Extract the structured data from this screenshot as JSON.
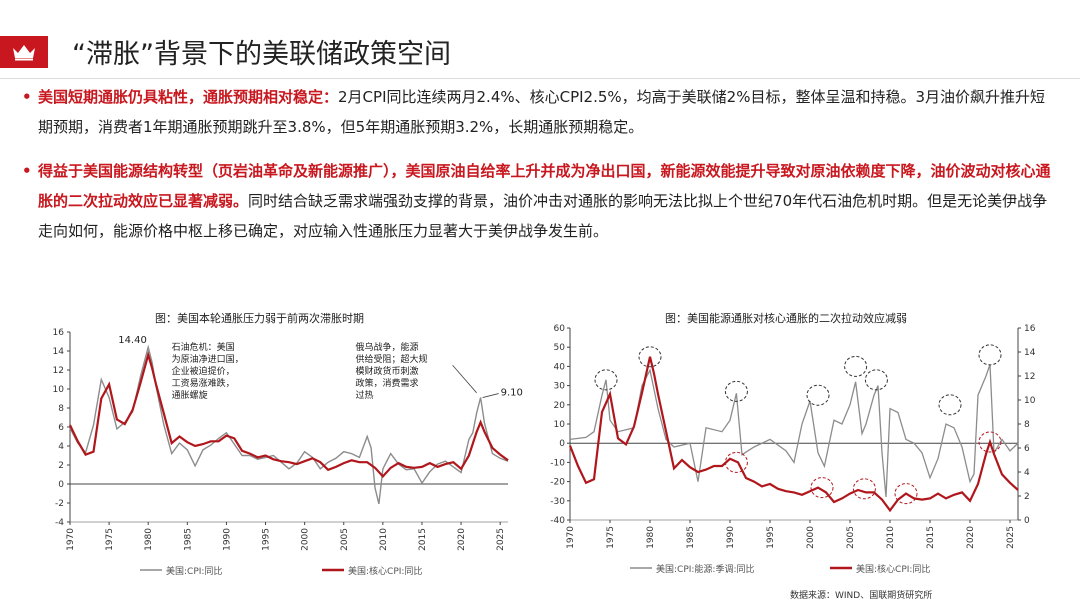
{
  "header": {
    "title": "“滞胀”背景下的美联储政策空间",
    "accent": "#c8171e"
  },
  "bullets": [
    {
      "highlight": "美国短期通胀仍具粘性，通胀预期相对稳定：",
      "text": "2月CPI同比连续两月2.4%、核心CPI2.5%，均高于美联储2%目标，整体呈温和持稳。3月油价飙升推升短期预期，消费者1年期通胀预期跳升至3.8%，但5年期通胀预期3.2%，长期通胀预期稳定。"
    },
    {
      "highlight": "得益于美国能源结构转型（页岩油革命及新能源推广），美国原油自给率上升并成为净出口国，新能源效能提升导致对原油依赖度下降，油价波动对核心通胀的二次拉动效应已显著减弱。",
      "text": "同时结合缺乏需求端强劲支撑的背景，油价冲击对通胀的影响无法比拟上个世纪70年代石油危机时期。但是无论美伊战争走向如何，能源价格中枢上移已确定，对应输入性通胀压力显著大于美伊战争发生前。"
    }
  ],
  "source": "数据来源：WIND、国联期货研究所",
  "chart_data": [
    {
      "type": "line",
      "title": "图：美国本轮通胀压力弱于前两次滞胀时期",
      "xlim": [
        1970,
        2026
      ],
      "ylim": [
        -4,
        16
      ],
      "x_ticks": [
        1970,
        1975,
        1980,
        1985,
        1990,
        1995,
        2000,
        2005,
        2010,
        2015,
        2020,
        2025
      ],
      "y_ticks": [
        -4,
        -2,
        0,
        2,
        4,
        6,
        8,
        10,
        12,
        14,
        16
      ],
      "series": [
        {
          "name": "美国:CPI:同比",
          "color": "#8c8c8c",
          "x": [
            1970,
            1971,
            1972,
            1973,
            1974,
            1975,
            1976,
            1977,
            1978,
            1979,
            1980,
            1980.5,
            1981,
            1982,
            1983,
            1984,
            1985,
            1986,
            1987,
            1988,
            1989,
            1990,
            1991,
            1992,
            1993,
            1994,
            1995,
            1996,
            1997,
            1998,
            1999,
            2000,
            2001,
            2002,
            2003,
            2004,
            2005,
            2006,
            2007,
            2008,
            2008.5,
            2009,
            2009.5,
            2010,
            2011,
            2012,
            2013,
            2014,
            2015,
            2016,
            2017,
            2018,
            2019,
            2020,
            2021,
            2021.5,
            2022,
            2022.5,
            2023,
            2024,
            2025,
            2026
          ],
          "y": [
            5.9,
            4.3,
            3.3,
            6.2,
            11.0,
            9.1,
            5.8,
            6.5,
            7.6,
            11.3,
            14.4,
            12.8,
            10.3,
            6.2,
            3.2,
            4.3,
            3.6,
            1.9,
            3.6,
            4.1,
            4.8,
            5.4,
            4.2,
            3.0,
            3.0,
            2.6,
            2.8,
            3.0,
            2.3,
            1.6,
            2.2,
            3.4,
            2.8,
            1.6,
            2.3,
            2.7,
            3.4,
            3.2,
            2.8,
            5.0,
            3.8,
            -0.4,
            -2.1,
            1.6,
            3.2,
            2.1,
            1.5,
            1.6,
            0.1,
            1.3,
            2.1,
            2.4,
            1.8,
            1.2,
            4.7,
            5.4,
            7.5,
            9.1,
            6.4,
            3.2,
            2.7,
            2.4
          ]
        },
        {
          "name": "美国:核心CPI:同比",
          "color": "#b0171c",
          "x": [
            1970,
            1971,
            1972,
            1973,
            1974,
            1975,
            1976,
            1977,
            1978,
            1979,
            1980,
            1980.5,
            1981,
            1982,
            1983,
            1984,
            1985,
            1986,
            1987,
            1988,
            1989,
            1990,
            1991,
            1992,
            1993,
            1994,
            1995,
            1996,
            1997,
            1998,
            1999,
            2000,
            2001,
            2002,
            2003,
            2004,
            2005,
            2006,
            2007,
            2008,
            2009,
            2010,
            2011,
            2012,
            2013,
            2014,
            2015,
            2016,
            2017,
            2018,
            2019,
            2020,
            2021,
            2022,
            2022.5,
            2023,
            2024,
            2025,
            2026
          ],
          "y": [
            6.2,
            4.5,
            3.1,
            3.4,
            9.0,
            10.5,
            6.8,
            6.3,
            7.8,
            10.6,
            13.6,
            12.2,
            10.5,
            7.4,
            4.3,
            5.0,
            4.4,
            4.0,
            4.2,
            4.5,
            4.5,
            5.1,
            4.8,
            3.5,
            3.2,
            2.8,
            3.0,
            2.6,
            2.4,
            2.3,
            2.1,
            2.4,
            2.7,
            2.3,
            1.5,
            1.8,
            2.2,
            2.5,
            2.3,
            2.3,
            1.7,
            0.8,
            1.7,
            2.2,
            1.8,
            1.7,
            1.8,
            2.2,
            1.8,
            2.1,
            2.3,
            1.6,
            3.0,
            5.5,
            6.5,
            5.5,
            3.8,
            3.1,
            2.5
          ]
        }
      ],
      "annotations": [
        {
          "text": "14.40"
        },
        {
          "text": "9.10"
        },
        {
          "lines": [
            "石油危机：美国",
            "为原油净进口国，",
            "企业被迫提价，",
            "工资易涨难跌，",
            "通胀螺旋"
          ]
        },
        {
          "lines": [
            "俄乌战争，能源",
            "供给受阻；超大规",
            "模财政货币刺激",
            "政策，消费需求",
            "过热"
          ]
        }
      ]
    },
    {
      "type": "line",
      "title": "图：美国能源通胀对核心通胀的二次拉动效应减弱",
      "xlim": [
        1970,
        2026
      ],
      "ylim_left": [
        -40,
        60
      ],
      "ylim_right": [
        0,
        16
      ],
      "x_ticks": [
        1970,
        1975,
        1980,
        1985,
        1990,
        1995,
        2000,
        2005,
        2010,
        2015,
        2020,
        2025
      ],
      "y_ticks_left": [
        -40,
        -30,
        -20,
        -10,
        0,
        10,
        20,
        30,
        40,
        50,
        60
      ],
      "y_ticks_right": [
        0,
        2,
        4,
        6,
        8,
        10,
        12,
        14,
        16
      ],
      "series": [
        {
          "name": "美国:CPI:能源:季调:同比",
          "axis": "left",
          "color": "#8c8c8c",
          "x": [
            1970,
            1972,
            1973,
            1974,
            1974.5,
            1975,
            1976,
            1978,
            1979,
            1980,
            1980.5,
            1981,
            1982,
            1983,
            1985,
            1986,
            1987,
            1989,
            1990,
            1990.8,
            1991.5,
            1993,
            1995,
            1997,
            1998,
            1999,
            2000,
            2001,
            2001.8,
            2003,
            2004,
            2005,
            2005.7,
            2006.5,
            2007,
            2008,
            2008.5,
            2009,
            2009.5,
            2010,
            2011,
            2012,
            2013,
            2014,
            2015,
            2016,
            2017,
            2018,
            2019,
            2020,
            2020.5,
            2021,
            2022,
            2022.5,
            2023,
            2024,
            2025,
            2026
          ],
          "y": [
            2,
            3,
            6,
            25,
            33,
            12,
            6,
            8,
            30,
            38,
            28,
            18,
            2,
            -2,
            0,
            -20,
            8,
            6,
            12,
            26,
            -6,
            -2,
            2,
            -4,
            -10,
            10,
            22,
            -5,
            -12,
            12,
            10,
            20,
            32,
            5,
            10,
            25,
            30,
            -5,
            -28,
            18,
            16,
            2,
            0,
            -5,
            -18,
            -8,
            10,
            8,
            -2,
            -20,
            -16,
            25,
            35,
            41,
            -5,
            2,
            -4,
            0
          ]
        },
        {
          "name": "美国:核心CPI:同比",
          "axis": "right",
          "color": "#b0171c",
          "x": [
            1970,
            1971,
            1972,
            1973,
            1974,
            1975,
            1976,
            1977,
            1978,
            1979,
            1980,
            1980.5,
            1981,
            1982,
            1983,
            1984,
            1985,
            1986,
            1987,
            1988,
            1989,
            1990,
            1991,
            1992,
            1993,
            1994,
            1995,
            1996,
            1997,
            1998,
            1999,
            2000,
            2001,
            2002,
            2003,
            2004,
            2005,
            2006,
            2007,
            2008,
            2009,
            2010,
            2011,
            2012,
            2013,
            2014,
            2015,
            2016,
            2017,
            2018,
            2019,
            2020,
            2021,
            2022,
            2022.5,
            2023,
            2024,
            2025,
            2026
          ],
          "y": [
            6.2,
            4.5,
            3.1,
            3.4,
            9.0,
            10.5,
            6.8,
            6.3,
            7.8,
            10.6,
            13.6,
            12.2,
            10.5,
            7.4,
            4.3,
            5.0,
            4.4,
            4.0,
            4.2,
            4.5,
            4.5,
            5.1,
            4.8,
            3.5,
            3.2,
            2.8,
            3.0,
            2.6,
            2.4,
            2.3,
            2.1,
            2.4,
            2.7,
            2.3,
            1.5,
            1.8,
            2.2,
            2.5,
            2.3,
            2.3,
            1.7,
            0.8,
            1.7,
            2.2,
            1.8,
            1.7,
            1.8,
            2.2,
            1.8,
            2.1,
            2.3,
            1.6,
            3.0,
            5.5,
            6.5,
            5.5,
            3.8,
            3.1,
            2.5
          ]
        }
      ],
      "circled_peaks": [
        {
          "axis": "left",
          "x": 1974.5,
          "y": 33
        },
        {
          "axis": "left",
          "x": 1980,
          "y": 45
        },
        {
          "axis": "left",
          "x": 1990.8,
          "y": 27
        },
        {
          "axis": "left",
          "x": 2001,
          "y": 25
        },
        {
          "axis": "left",
          "x": 2005.7,
          "y": 40
        },
        {
          "axis": "left",
          "x": 2008.3,
          "y": 33
        },
        {
          "axis": "left",
          "x": 2017.5,
          "y": 20
        },
        {
          "axis": "left",
          "x": 2022.5,
          "y": 46
        },
        {
          "axis": "right",
          "x": 1990.8,
          "y": 4.8
        },
        {
          "axis": "right",
          "x": 2001.5,
          "y": 2.7
        },
        {
          "axis": "right",
          "x": 2006.8,
          "y": 2.6
        },
        {
          "axis": "right",
          "x": 2012,
          "y": 2.2
        },
        {
          "axis": "right",
          "x": 2022.5,
          "y": 6.5
        }
      ]
    }
  ]
}
